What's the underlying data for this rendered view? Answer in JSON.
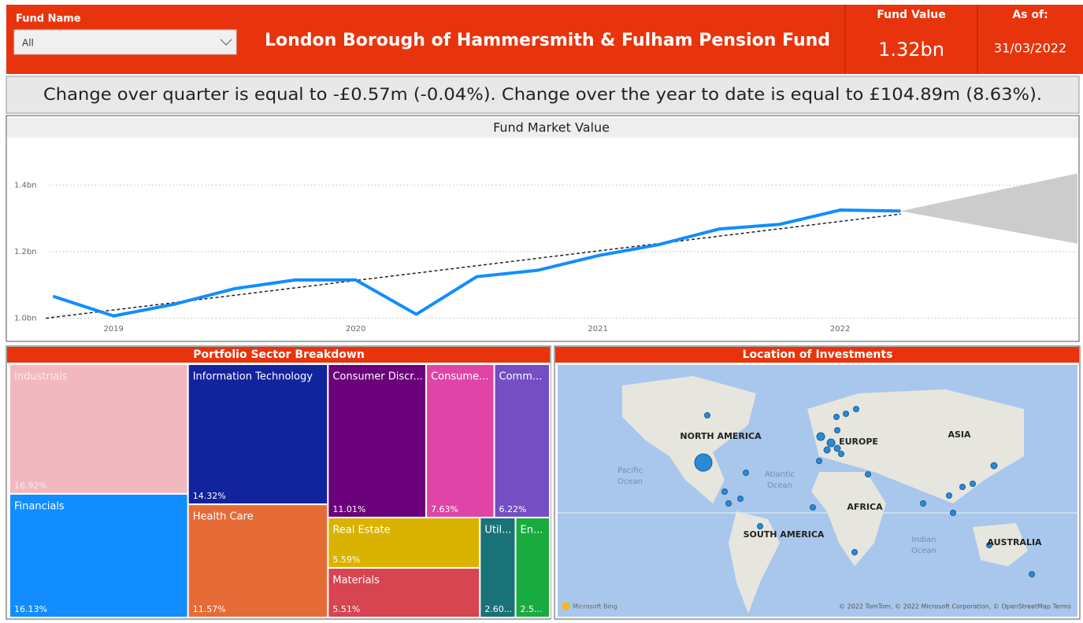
{
  "header": {
    "fund_name_label": "Fund Name",
    "fund_name_value": "All",
    "title": "London Borough of Hammersmith & Fulham Pension Fund",
    "fund_value_label": "Fund Value",
    "fund_value": "1.32bn",
    "as_of_label": "As of:",
    "as_of": "31/03/2022"
  },
  "summary": "Change over quarter is equal to -£0.57m (-0.04%). Change over the year to date is equal to £104.89m (8.63%).",
  "chart_data": [
    {
      "type": "line",
      "title": "Fund Market Value",
      "x": [
        2018.75,
        2019,
        2019.25,
        2019.5,
        2019.75,
        2020,
        2020.25,
        2020.5,
        2020.75,
        2021,
        2021.25,
        2021.5,
        2021.75,
        2022,
        2022.25
      ],
      "series": [
        {
          "color": "#118dff",
          "values": [
            1.066,
            1.007,
            1.042,
            1.089,
            1.115,
            1.115,
            1.012,
            1.125,
            1.144,
            1.188,
            1.221,
            1.268,
            1.282,
            1.325,
            1.322
          ]
        }
      ],
      "trend": {
        "x": [
          2018.72,
          2022.25
        ],
        "values": [
          1.0,
          1.313
        ],
        "color": "#222222"
      },
      "forecast": {
        "x": [
          2022.25,
          2022.98
        ],
        "upper": [
          1.322,
          1.435
        ],
        "lower": [
          1.322,
          1.224
        ],
        "color": "#cccccc"
      },
      "xlim": [
        2018.71,
        2022.98
      ],
      "xticks": [
        2019,
        2020,
        2021,
        2022
      ],
      "ylim": [
        0.94,
        1.54
      ],
      "yticks": [
        {
          "value": 1.0,
          "label": "1.0bn"
        },
        {
          "value": 1.2,
          "label": "1.2bn"
        },
        {
          "value": 1.4,
          "label": "1.4bn"
        }
      ],
      "grid": true
    },
    {
      "type": "treemap",
      "title": "Portfolio Sector Breakdown",
      "categories": [
        "Industrials",
        "Financials",
        "Information Technology",
        "Health Care",
        "Consumer Discr...",
        "Consume...",
        "Comm...",
        "Real Estate",
        "Materials",
        "Util...",
        "En..."
      ],
      "values": [
        16.92,
        16.13,
        14.32,
        11.57,
        11.01,
        7.63,
        6.22,
        5.59,
        5.51,
        2.6,
        2.5
      ],
      "value_labels": [
        "16.92%",
        "16.13%",
        "14.32%",
        "11.57%",
        "11.01%",
        "7.63%",
        "6.22%",
        "5.59%",
        "5.51%",
        "2.60...",
        "2.5..."
      ],
      "colors": [
        "#f2b8c0",
        "#118dff",
        "#12239e",
        "#e66c37",
        "#6b007b",
        "#e044a7",
        "#744ec2",
        "#d9b300",
        "#d64550",
        "#197278",
        "#1aab40"
      ]
    }
  ],
  "map": {
    "title": "Location of Investments",
    "labels": [
      "NORTH AMERICA",
      "EUROPE",
      "ASIA",
      "Pacific",
      "Ocean",
      "Atlantic",
      "Ocean",
      "AFRICA",
      "SOUTH AMERICA",
      "Indian",
      "Ocean",
      "AUSTRALIA"
    ],
    "bing": "Microsoft Bing",
    "attribution": "© 2022 TomTom, © 2022 Microsoft Corporation, © OpenStreetMap  Terms"
  }
}
